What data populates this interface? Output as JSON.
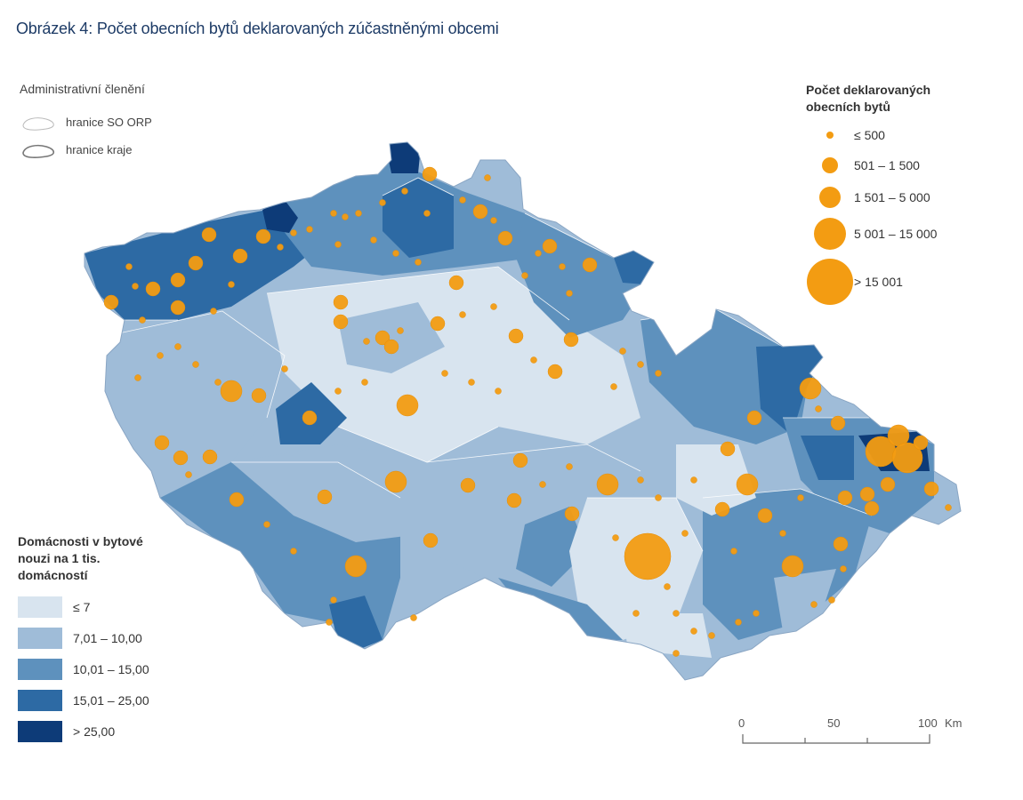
{
  "title": "Obrázek 4: Počet obecních bytů deklarovaných zúčastněnými obcemi",
  "admin_legend": {
    "heading": "Administrativní členění",
    "items": [
      {
        "label": "hranice SO ORP",
        "style": "thin"
      },
      {
        "label": "hranice kraje",
        "style": "thick"
      }
    ]
  },
  "bubble_legend": {
    "heading_line1": "Počet deklarovaných",
    "heading_line2": "obecních bytů",
    "items": [
      {
        "label": "≤ 500",
        "class": 1
      },
      {
        "label": "501 – 1 500",
        "class": 2
      },
      {
        "label": "1 501 – 5 000",
        "class": 3
      },
      {
        "label": "5 001 – 15 000",
        "class": 4
      },
      {
        "label": "> 15 001",
        "class": 5
      }
    ]
  },
  "choropleth_legend": {
    "heading_line1": "Domácnosti v bytové",
    "heading_line2": "nouzi na 1 tis.",
    "heading_line3": "domácností",
    "items": [
      {
        "label": "≤ 7",
        "color": "#d8e4ef"
      },
      {
        "label": "7,01 – 10,00",
        "color": "#9fbcd8"
      },
      {
        "label": "10,01 – 15,00",
        "color": "#5e91bd"
      },
      {
        "label": "15,01 – 25,00",
        "color": "#2d6aa4"
      },
      {
        "label": "> 25,00",
        "color": "#0d3b78"
      }
    ]
  },
  "scale_bar": {
    "labels": [
      "0",
      "50",
      "100"
    ],
    "unit": "Km"
  },
  "colors": {
    "bubble": "#f39c12",
    "boundary": "#ffffff",
    "title": "#1d3b66"
  },
  "map_data": {
    "regions": [
      {
        "class": 4,
        "label": "north-bohemia-core"
      },
      {
        "class": 3,
        "label": "north-bohemia-outer"
      },
      {
        "class": 2,
        "label": "west-bohemia"
      },
      {
        "class": 1,
        "label": "central-bohemia"
      },
      {
        "class": 2,
        "label": "south-bohemia"
      },
      {
        "class": 3,
        "label": "vysocina-east"
      },
      {
        "class": 3,
        "label": "moravia-north"
      },
      {
        "class": 4,
        "label": "silesia"
      },
      {
        "class": 5,
        "label": "ostrava"
      },
      {
        "class": 1,
        "label": "brno-region"
      },
      {
        "class": 3,
        "label": "zlin-region"
      },
      {
        "class": 2,
        "label": "olomouc-region"
      }
    ],
    "bubble_classes": [
      1,
      1,
      1,
      2,
      2,
      3,
      3,
      4,
      5
    ]
  }
}
